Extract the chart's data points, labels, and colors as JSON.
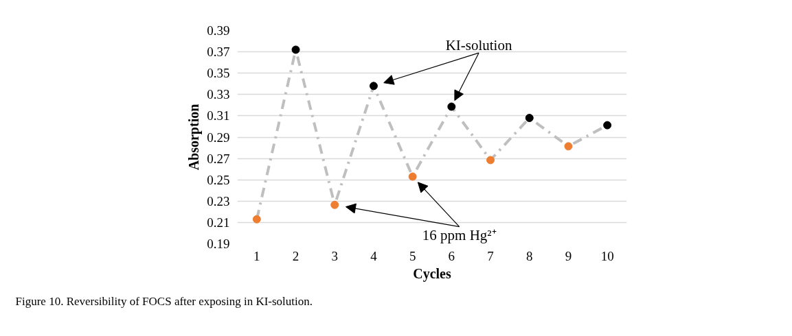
{
  "chart_data": {
    "type": "line",
    "title": "Figure 10. Reversibility of FOCS after exposing in KI-solution.",
    "xlabel": "Cycles",
    "ylabel": "Absorption",
    "x": [
      1,
      2,
      3,
      4,
      5,
      6,
      7,
      8,
      9,
      10
    ],
    "series": [
      {
        "color": "#bfbfbf",
        "colors": [
          "#ed7d31",
          "#000000",
          "#ed7d31",
          "#000000",
          "#ed7d31",
          "#000000",
          "#ed7d31",
          "#000000",
          "#ed7d31",
          "#000000"
        ],
        "values": [
          0.213,
          0.372,
          0.2265,
          0.338,
          0.253,
          0.3186,
          0.2685,
          0.308,
          0.2814,
          0.3012
        ]
      }
    ],
    "xlim": [
      0.5,
      10.5
    ],
    "xticks": [
      1,
      2,
      3,
      4,
      5,
      6,
      7,
      8,
      9,
      10
    ],
    "ylim": [
      0.19,
      0.39
    ],
    "yticks": [
      0.19,
      0.21,
      0.23,
      0.25,
      0.27,
      0.29,
      0.31,
      0.33,
      0.35,
      0.37,
      0.39
    ],
    "grid": "y",
    "marker": "circle",
    "line_style": "dashed",
    "annotations": [
      "KI-solution",
      "16 ppm Hg²⁺"
    ]
  }
}
